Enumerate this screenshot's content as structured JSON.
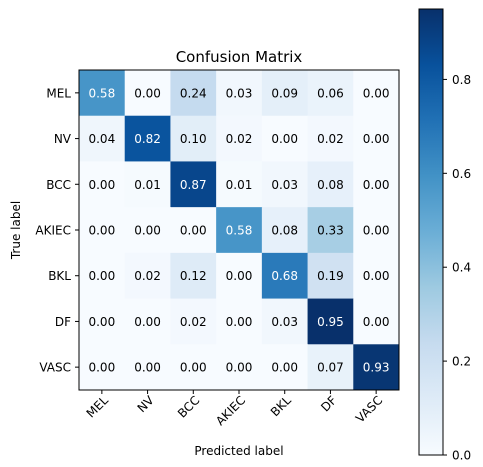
{
  "chart_data": {
    "type": "heatmap",
    "title": "Confusion Matrix",
    "xlabel": "Predicted label",
    "ylabel": "True label",
    "x_categories": [
      "MEL",
      "NV",
      "BCC",
      "AKIEC",
      "BKL",
      "DF",
      "VASC"
    ],
    "y_categories": [
      "MEL",
      "NV",
      "BCC",
      "AKIEC",
      "BKL",
      "DF",
      "VASC"
    ],
    "values": [
      [
        0.58,
        0.0,
        0.24,
        0.03,
        0.09,
        0.06,
        0.0
      ],
      [
        0.04,
        0.82,
        0.1,
        0.02,
        0.0,
        0.02,
        0.0
      ],
      [
        0.0,
        0.01,
        0.87,
        0.01,
        0.03,
        0.08,
        0.0
      ],
      [
        0.0,
        0.0,
        0.0,
        0.58,
        0.08,
        0.33,
        0.0
      ],
      [
        0.0,
        0.02,
        0.12,
        0.0,
        0.68,
        0.19,
        0.0
      ],
      [
        0.0,
        0.0,
        0.02,
        0.0,
        0.03,
        0.95,
        0.0
      ],
      [
        0.0,
        0.0,
        0.0,
        0.0,
        0.0,
        0.07,
        0.93
      ]
    ],
    "colormap": "Blues",
    "colorbar": {
      "range": [
        0.0,
        0.95
      ],
      "ticks": [
        0.0,
        0.2,
        0.4,
        0.6,
        0.8
      ],
      "tick_labels": [
        "0.0",
        "0.2",
        "0.4",
        "0.6",
        "0.8"
      ]
    },
    "grid": false
  }
}
